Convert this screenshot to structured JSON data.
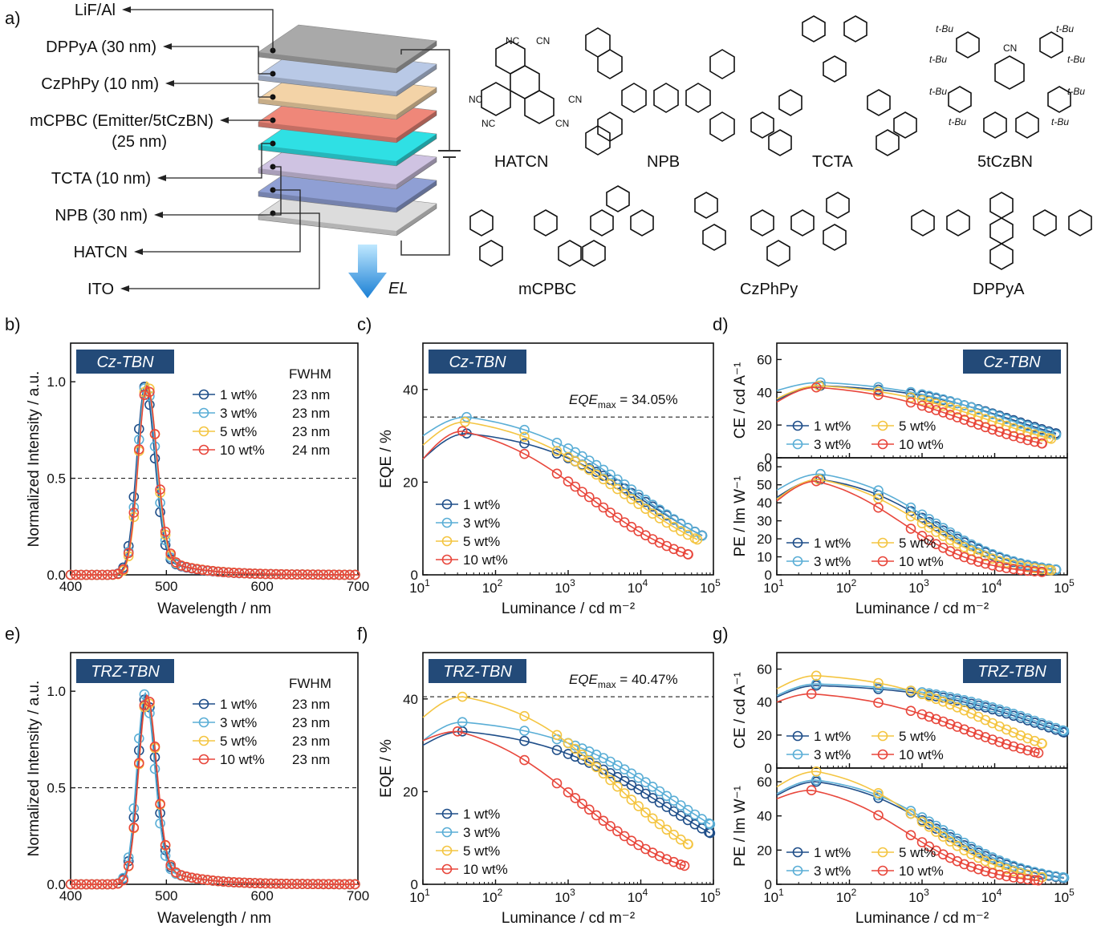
{
  "colors": {
    "s1": "#1f4e89",
    "s2": "#5aaed6",
    "s3": "#f4c542",
    "s4": "#e8473c",
    "badge": "#234a78"
  },
  "device": {
    "panel": "a)",
    "layers": [
      {
        "label": "LiF/Al",
        "color": "#a9a9a9"
      },
      {
        "label": "DPPyA (30 nm)",
        "color": "#b9c9e6"
      },
      {
        "label": "CzPhPy (10 nm)",
        "color": "#f3d3a7"
      },
      {
        "label": "mCPBC (Emitter/5tCzBN)",
        "label2": "(25 nm)",
        "color": "#ef8779"
      },
      {
        "label": "TCTA (10 nm)",
        "color": "#2fe0e4"
      },
      {
        "label": "NPB (30 nm)",
        "color": "#cfc3e2"
      },
      {
        "label": "HATCN",
        "color": "#8f9fd4"
      },
      {
        "label": "ITO",
        "color": "#dcdcdc"
      }
    ],
    "el_label": "EL"
  },
  "molecules": {
    "names": [
      "HATCN",
      "NPB",
      "TCTA",
      "5tCzBN",
      "mCPBC",
      "CzPhPy",
      "DPPyA"
    ],
    "atom_labels": {
      "n": "N",
      "cn": "CN",
      "nc": "NC",
      "tbu": "t-Bu"
    }
  },
  "chart_data": [
    {
      "id": "b",
      "panel": "b)",
      "type": "line",
      "badge": "Cz-TBN",
      "xlabel": "Wavelength / nm",
      "ylabel": "Normalized Intensity / a.u.",
      "xlim": [
        400,
        700
      ],
      "ylim": [
        0,
        1.2
      ],
      "xticks": [
        "400",
        "500",
        "600",
        "700"
      ],
      "yticks": [
        "0.0",
        "0.5",
        "1.0"
      ],
      "ref_y": 0.5,
      "fwhm_title": "FWHM",
      "series": [
        {
          "name": "1 wt%",
          "fwhm": "23 nm",
          "peak": 478,
          "sigma": 9.8,
          "amp": 0.98
        },
        {
          "name": "3 wt%",
          "fwhm": "23 nm",
          "peak": 479,
          "sigma": 9.8,
          "amp": 0.99
        },
        {
          "name": "5 wt%",
          "fwhm": "23 nm",
          "peak": 480,
          "sigma": 9.8,
          "amp": 1.0
        },
        {
          "name": "10 wt%",
          "fwhm": "24 nm",
          "peak": 480,
          "sigma": 10.2,
          "amp": 0.98
        }
      ]
    },
    {
      "id": "c",
      "panel": "c)",
      "type": "line",
      "badge": "Cz-TBN",
      "xlabel": "Luminance / cd m⁻²",
      "ylabel": "EQE / %",
      "xlog": true,
      "xlim": [
        10,
        100000
      ],
      "ylim": [
        0,
        50
      ],
      "yticks": [
        "0",
        "20",
        "40"
      ],
      "ref_y": 34.05,
      "annot": "= 34.05%",
      "series": [
        {
          "name": "1 wt%",
          "max": 30.5,
          "lpk": 40,
          "lhalf": 12000,
          "p": 0.55,
          "lmax": 70000,
          "start": 25
        },
        {
          "name": "3 wt%",
          "max": 34.05,
          "lpk": 40,
          "lhalf": 9000,
          "p": 0.55,
          "lmax": 70000,
          "start": 30
        },
        {
          "name": "5 wt%",
          "max": 33.0,
          "lpk": 38,
          "lhalf": 6500,
          "p": 0.55,
          "lmax": 60000,
          "start": 28
        },
        {
          "name": "10 wt%",
          "max": 31.0,
          "lpk": 35,
          "lhalf": 2200,
          "p": 0.6,
          "lmax": 45000,
          "start": 25
        }
      ]
    },
    {
      "id": "d1",
      "panel": "d)",
      "type": "line",
      "badge": "Cz-TBN",
      "ylabel": "CE / cd A⁻¹",
      "xlog": true,
      "xlim": [
        10,
        100000
      ],
      "ylim": [
        0,
        70
      ],
      "yticks": [
        "0",
        "20",
        "40",
        "60"
      ],
      "series": [
        {
          "name": "1 wt%",
          "max": 44,
          "lpk": 40,
          "lhalf": 20000,
          "p": 0.55,
          "lmax": 70000,
          "start": 35
        },
        {
          "name": "3 wt%",
          "max": 46,
          "lpk": 40,
          "lhalf": 15000,
          "p": 0.55,
          "lmax": 70000,
          "start": 41
        },
        {
          "name": "5 wt%",
          "max": 44,
          "lpk": 38,
          "lhalf": 9000,
          "p": 0.55,
          "lmax": 60000,
          "start": 36
        },
        {
          "name": "10 wt%",
          "max": 43,
          "lpk": 35,
          "lhalf": 4500,
          "p": 0.6,
          "lmax": 45000,
          "start": 34
        }
      ]
    },
    {
      "id": "d2",
      "type": "line",
      "ylabel": "PE / lm W⁻¹",
      "xlabel": "Luminance / cd m⁻²",
      "xlog": true,
      "xlim": [
        10,
        100000
      ],
      "ylim": [
        0,
        65
      ],
      "yticks": [
        "0",
        "10",
        "20",
        "30",
        "40",
        "50",
        "60"
      ],
      "series": [
        {
          "name": "1 wt%",
          "max": 53,
          "lpk": 40,
          "lhalf": 1500,
          "p": 0.75,
          "lmax": 70000,
          "start": 43
        },
        {
          "name": "3 wt%",
          "max": 56,
          "lpk": 40,
          "lhalf": 1500,
          "p": 0.75,
          "lmax": 70000,
          "start": 47
        },
        {
          "name": "5 wt%",
          "max": 53,
          "lpk": 38,
          "lhalf": 1100,
          "p": 0.75,
          "lmax": 60000,
          "start": 42
        },
        {
          "name": "10 wt%",
          "max": 52,
          "lpk": 35,
          "lhalf": 600,
          "p": 0.8,
          "lmax": 45000,
          "start": 41
        }
      ]
    },
    {
      "id": "e",
      "panel": "e)",
      "type": "line",
      "badge": "TRZ-TBN",
      "xlabel": "Wavelength / nm",
      "ylabel": "Normalized Intensity / a.u.",
      "xlim": [
        400,
        700
      ],
      "ylim": [
        0,
        1.2
      ],
      "xticks": [
        "400",
        "500",
        "600",
        "700"
      ],
      "yticks": [
        "0.0",
        "0.5",
        "1.0"
      ],
      "ref_y": 0.5,
      "fwhm_title": "FWHM",
      "series": [
        {
          "name": "1 wt%",
          "fwhm": "23 nm",
          "peak": 479,
          "sigma": 9.8,
          "amp": 0.98
        },
        {
          "name": "3 wt%",
          "fwhm": "23 nm",
          "peak": 478,
          "sigma": 9.6,
          "amp": 0.99
        },
        {
          "name": "5 wt%",
          "fwhm": "23 nm",
          "peak": 480,
          "sigma": 9.8,
          "amp": 0.97
        },
        {
          "name": "10 wt%",
          "fwhm": "23 nm",
          "peak": 480,
          "sigma": 9.8,
          "amp": 0.98
        }
      ]
    },
    {
      "id": "f",
      "panel": "f)",
      "type": "line",
      "badge": "TRZ-TBN",
      "xlabel": "Luminance / cd m⁻²",
      "ylabel": "EQE / %",
      "xlog": true,
      "xlim": [
        10,
        100000
      ],
      "ylim": [
        0,
        50
      ],
      "yticks": [
        "0",
        "20",
        "40"
      ],
      "ref_y": 40.47,
      "annot": "= 40.47%",
      "series": [
        {
          "name": "1 wt%",
          "max": 33.0,
          "lpk": 35,
          "lhalf": 22000,
          "p": 0.5,
          "lmax": 90000,
          "start": 30
        },
        {
          "name": "3 wt%",
          "max": 35.0,
          "lpk": 35,
          "lhalf": 30000,
          "p": 0.5,
          "lmax": 90000,
          "start": 31
        },
        {
          "name": "5 wt%",
          "max": 40.47,
          "lpk": 35,
          "lhalf": 5000,
          "p": 0.6,
          "lmax": 45000,
          "start": 36
        },
        {
          "name": "10 wt%",
          "max": 33.0,
          "lpk": 30,
          "lhalf": 1600,
          "p": 0.62,
          "lmax": 40000,
          "start": 31
        }
      ]
    },
    {
      "id": "g1",
      "panel": "g)",
      "type": "line",
      "badge": "TRZ-TBN",
      "ylabel": "CE / cd A⁻¹",
      "xlog": true,
      "xlim": [
        10,
        100000
      ],
      "ylim": [
        0,
        70
      ],
      "yticks": [
        "0",
        "20",
        "40",
        "60"
      ],
      "series": [
        {
          "name": "1 wt%",
          "max": 50,
          "lpk": 35,
          "lhalf": 50000,
          "p": 0.5,
          "lmax": 90000,
          "start": 43
        },
        {
          "name": "3 wt%",
          "max": 51,
          "lpk": 35,
          "lhalf": 55000,
          "p": 0.5,
          "lmax": 90000,
          "start": 44
        },
        {
          "name": "5 wt%",
          "max": 56,
          "lpk": 35,
          "lhalf": 8000,
          "p": 0.6,
          "lmax": 45000,
          "start": 48
        },
        {
          "name": "10 wt%",
          "max": 45,
          "lpk": 30,
          "lhalf": 4000,
          "p": 0.6,
          "lmax": 40000,
          "start": 40
        }
      ]
    },
    {
      "id": "g2",
      "type": "line",
      "ylabel": "PE / lm W⁻¹",
      "xlabel": "Luminance / cd m⁻²",
      "xlog": true,
      "xlim": [
        10,
        100000
      ],
      "ylim": [
        0,
        68
      ],
      "yticks": [
        "0",
        "20",
        "40",
        "60"
      ],
      "series": [
        {
          "name": "1 wt%",
          "max": 60,
          "lpk": 35,
          "lhalf": 1800,
          "p": 0.7,
          "lmax": 90000,
          "start": 52
        },
        {
          "name": "3 wt%",
          "max": 61,
          "lpk": 35,
          "lhalf": 2000,
          "p": 0.7,
          "lmax": 90000,
          "start": 53
        },
        {
          "name": "5 wt%",
          "max": 66,
          "lpk": 35,
          "lhalf": 1200,
          "p": 0.75,
          "lmax": 45000,
          "start": 57
        },
        {
          "name": "10 wt%",
          "max": 55,
          "lpk": 30,
          "lhalf": 700,
          "p": 0.78,
          "lmax": 40000,
          "start": 50
        }
      ]
    }
  ]
}
